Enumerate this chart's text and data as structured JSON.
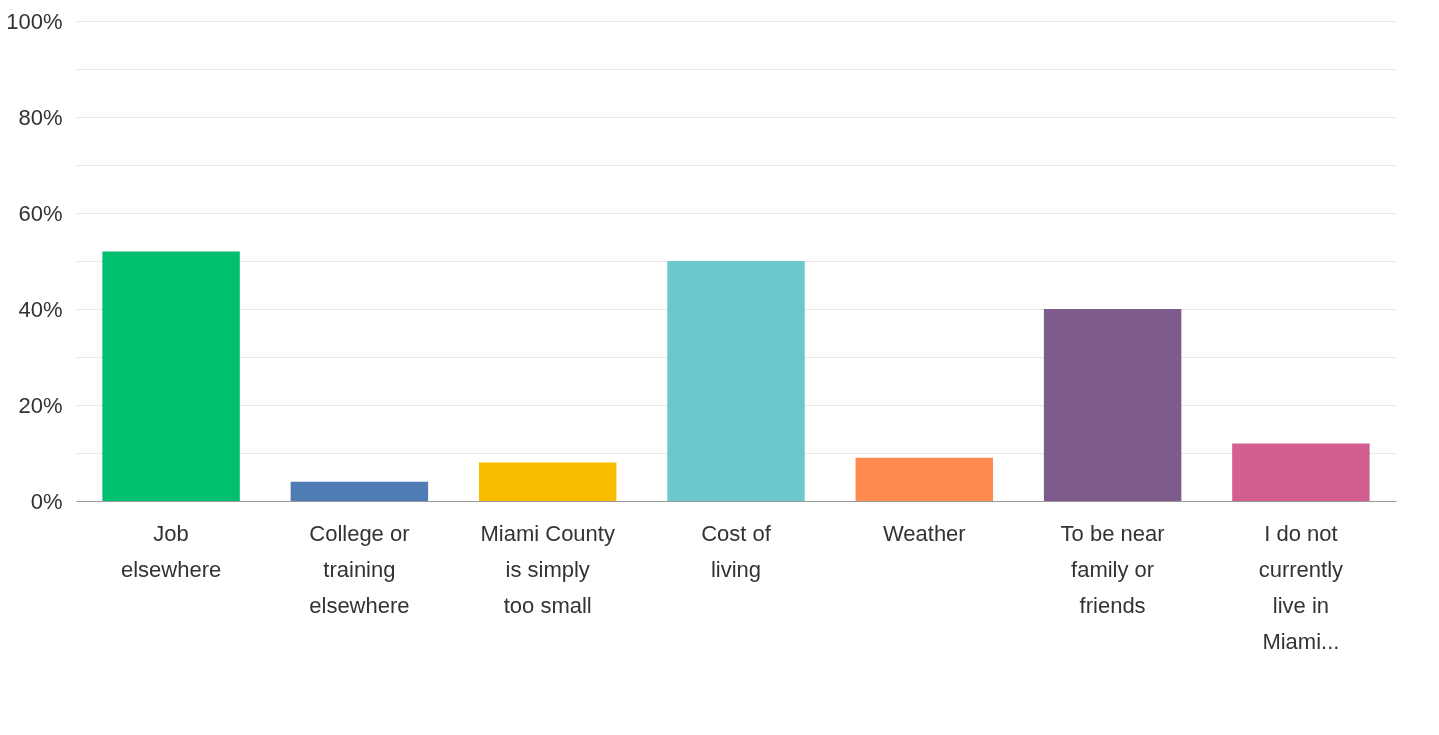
{
  "chart_data": {
    "type": "bar",
    "categories": [
      "Job elsewhere",
      "College or training elsewhere",
      "Miami County is simply too small",
      "Cost of living",
      "Weather",
      "To be near family or friends",
      "I do not currently live in Miami..."
    ],
    "values": [
      52,
      4,
      8,
      50,
      9,
      40,
      12
    ],
    "colors": [
      "#00bf6f",
      "#507cb6",
      "#f9be00",
      "#6bc8cd",
      "#ff8b4f",
      "#7d5b8c",
      "#d25f90"
    ],
    "ylim": [
      0,
      100
    ],
    "yticks": [
      {
        "value": 0,
        "label": "0%"
      },
      {
        "value": 10,
        "label": null
      },
      {
        "value": 20,
        "label": "20%"
      },
      {
        "value": 30,
        "label": null
      },
      {
        "value": 40,
        "label": "40%"
      },
      {
        "value": 50,
        "label": null
      },
      {
        "value": 60,
        "label": "60%"
      },
      {
        "value": 70,
        "label": null
      },
      {
        "value": 80,
        "label": "80%"
      },
      {
        "value": 90,
        "label": null
      },
      {
        "value": 100,
        "label": "100%"
      }
    ],
    "grid": "y"
  }
}
